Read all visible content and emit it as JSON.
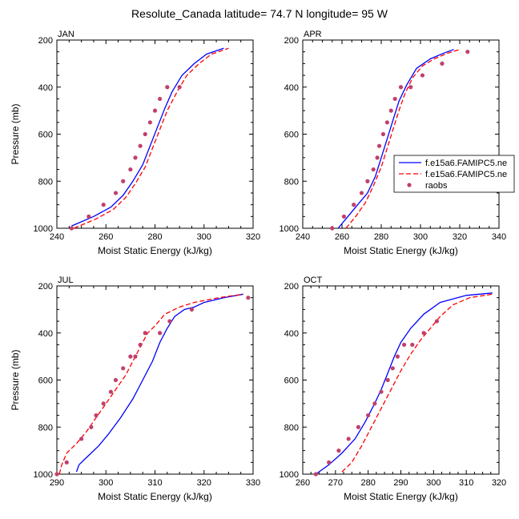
{
  "figure": {
    "title": "Resolute_Canada  latitude= 74.7 N longitude= 95 W",
    "legend": {
      "placement": "right of APR panel",
      "entries": [
        {
          "label": "f.e15a6.FAMIPC5.ne",
          "style": "solid",
          "color": "#0000ff"
        },
        {
          "label": "f.e15a6.FAMIPC5.ne",
          "style": "dashed",
          "color": "#ff0000"
        },
        {
          "label": "raobs",
          "style": "dots",
          "color": "#c0406c"
        }
      ]
    }
  },
  "chart_data": [
    {
      "type": "line",
      "panel_label": "JAN",
      "xlabel": "Moist Static Energy (kJ/kg)",
      "ylabel": "Pressure (mb)",
      "xlim": [
        240,
        320
      ],
      "ylim": [
        1000,
        200
      ],
      "xticks": [
        240,
        260,
        280,
        300,
        320
      ],
      "yticks": [
        200,
        400,
        600,
        800,
        1000
      ],
      "series": [
        {
          "name": "f.e15a6.FAMIPC5.ne",
          "style": "solid",
          "color": "#0000ff",
          "x": [
            246,
            255,
            262,
            267,
            271,
            275,
            278,
            281,
            284,
            287,
            291,
            296,
            301,
            308
          ],
          "y": [
            990,
            950,
            910,
            860,
            800,
            730,
            650,
            570,
            490,
            420,
            350,
            300,
            260,
            235
          ]
        },
        {
          "name": "f.e15a6.FAMIPC5.ne",
          "style": "dashed",
          "color": "#ff0000",
          "x": [
            247,
            256,
            263,
            268,
            272,
            276,
            279,
            282,
            285,
            289,
            293,
            298,
            303,
            310
          ],
          "y": [
            1000,
            960,
            920,
            870,
            810,
            740,
            660,
            580,
            500,
            420,
            350,
            300,
            260,
            235
          ]
        },
        {
          "name": "raobs",
          "style": "dots",
          "color": "#c0406c",
          "x": [
            246,
            253,
            259,
            264,
            267,
            270,
            272,
            274,
            276,
            278,
            280,
            282,
            285,
            290
          ],
          "y": [
            1000,
            950,
            900,
            850,
            800,
            750,
            700,
            650,
            600,
            550,
            500,
            450,
            400,
            400
          ]
        }
      ]
    },
    {
      "type": "line",
      "panel_label": "APR",
      "xlabel": "Moist Static Energy (kJ/kg)",
      "ylabel": "",
      "xlim": [
        240,
        340
      ],
      "ylim": [
        1000,
        200
      ],
      "xticks": [
        240,
        260,
        280,
        300,
        320,
        340
      ],
      "yticks": [
        200,
        400,
        600,
        800,
        1000
      ],
      "series": [
        {
          "name": "f.e15a6.FAMIPC5.ne",
          "style": "solid",
          "color": "#0000ff",
          "x": [
            258,
            263,
            268,
            273,
            277,
            280,
            283,
            286,
            289,
            293,
            298,
            305,
            312,
            317
          ],
          "y": [
            1000,
            950,
            900,
            850,
            780,
            700,
            620,
            540,
            460,
            390,
            320,
            280,
            255,
            240
          ]
        },
        {
          "name": "f.e15a6.FAMIPC5.ne",
          "style": "dashed",
          "color": "#ff0000",
          "x": [
            262,
            267,
            272,
            276,
            280,
            283,
            286,
            289,
            292,
            296,
            301,
            307,
            314,
            320
          ],
          "y": [
            1000,
            950,
            890,
            820,
            740,
            660,
            580,
            500,
            430,
            360,
            310,
            280,
            255,
            240
          ]
        },
        {
          "name": "raobs",
          "style": "dots",
          "color": "#c0406c",
          "x": [
            255,
            261,
            266,
            270,
            273,
            276,
            278,
            279,
            281,
            283,
            285,
            287,
            290,
            295,
            301,
            311,
            324
          ],
          "y": [
            1000,
            950,
            900,
            850,
            800,
            750,
            700,
            650,
            600,
            550,
            500,
            450,
            400,
            400,
            350,
            300,
            250
          ]
        }
      ]
    },
    {
      "type": "line",
      "panel_label": "JUL",
      "xlabel": "Moist Static Energy (kJ/kg)",
      "ylabel": "Pressure (mb)",
      "xlim": [
        290,
        330
      ],
      "ylim": [
        1000,
        200
      ],
      "xticks": [
        290,
        300,
        310,
        320,
        330
      ],
      "yticks": [
        200,
        400,
        600,
        800,
        1000
      ],
      "series": [
        {
          "name": "f.e15a6.FAMIPC5.ne",
          "style": "solid",
          "color": "#0000ff",
          "x": [
            294,
            294.5,
            295.5,
            297,
            298.5,
            300.5,
            303,
            305.5,
            307.5,
            309.5,
            311,
            312.5,
            314,
            316,
            318,
            320,
            324,
            328
          ],
          "y": [
            990,
            960,
            940,
            910,
            880,
            830,
            760,
            680,
            600,
            520,
            440,
            380,
            330,
            300,
            290,
            270,
            250,
            235
          ]
        },
        {
          "name": "f.e15a6.FAMIPC5.ne",
          "style": "dashed",
          "color": "#ff0000",
          "x": [
            290.5,
            291,
            292,
            294,
            296,
            298,
            300,
            302,
            304,
            305.5,
            307,
            308.5,
            310,
            312,
            315,
            318,
            323,
            328
          ],
          "y": [
            1000,
            960,
            910,
            870,
            820,
            760,
            700,
            640,
            580,
            520,
            460,
            400,
            370,
            320,
            290,
            270,
            250,
            235
          ]
        },
        {
          "name": "raobs",
          "style": "dots",
          "color": "#c0406c",
          "x": [
            290,
            292,
            295,
            297,
            298,
            299.5,
            301,
            302,
            303.5,
            305,
            306,
            307,
            308,
            311,
            313,
            317.5,
            329
          ],
          "y": [
            1000,
            950,
            850,
            800,
            750,
            700,
            650,
            600,
            550,
            500,
            500,
            450,
            400,
            400,
            350,
            300,
            250
          ]
        }
      ]
    },
    {
      "type": "line",
      "panel_label": "OCT",
      "xlabel": "Moist Static Energy (kJ/kg)",
      "ylabel": "",
      "xlim": [
        260,
        320
      ],
      "ylim": [
        1000,
        200
      ],
      "xticks": [
        260,
        270,
        280,
        290,
        300,
        310,
        320
      ],
      "yticks": [
        200,
        400,
        600,
        800,
        1000
      ],
      "series": [
        {
          "name": "f.e15a6.FAMIPC5.ne",
          "style": "solid",
          "color": "#0000ff",
          "x": [
            264,
            268,
            272,
            276,
            279,
            282,
            284,
            286,
            288,
            290,
            293,
            297,
            302,
            310,
            318
          ],
          "y": [
            1000,
            960,
            910,
            850,
            780,
            700,
            640,
            570,
            500,
            440,
            380,
            320,
            270,
            240,
            230
          ]
        },
        {
          "name": "f.e15a6.FAMIPC5.ne",
          "style": "dashed",
          "color": "#ff0000",
          "x": [
            272,
            275,
            278,
            281,
            284,
            287,
            290,
            293,
            296,
            299,
            302,
            306,
            311,
            318
          ],
          "y": [
            990,
            950,
            880,
            800,
            720,
            640,
            560,
            490,
            430,
            380,
            330,
            280,
            250,
            235
          ]
        },
        {
          "name": "raobs",
          "style": "dots",
          "color": "#c0406c",
          "x": [
            264,
            268,
            271,
            274,
            277,
            280,
            282,
            284,
            286,
            287.5,
            289,
            291,
            293.5,
            297,
            301
          ],
          "y": [
            1000,
            950,
            900,
            850,
            800,
            750,
            700,
            650,
            600,
            550,
            500,
            450,
            450,
            400,
            350
          ]
        }
      ]
    }
  ]
}
